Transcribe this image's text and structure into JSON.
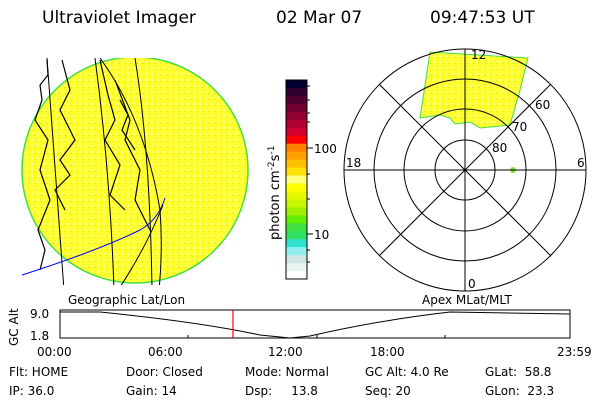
{
  "header": {
    "instrument": "Ultraviolet Imager",
    "date": "02 Mar 07",
    "time": "09:47:53 UT"
  },
  "colorbar": {
    "label": "photon cm",
    "label_exp1": "-2",
    "label_mid": "s",
    "label_exp2": "-1",
    "ticks": [
      "100",
      "10"
    ],
    "colors": [
      "#000030",
      "#300030",
      "#500030",
      "#700030",
      "#900030",
      "#b00030",
      "#d00030",
      "#ff0000",
      "#ff8000",
      "#ffa000",
      "#ffc000",
      "#ffe000",
      "#ffff80",
      "#ffff00",
      "#e8f800",
      "#c8f800",
      "#a0f000",
      "#60f000",
      "#40e040",
      "#30e060",
      "#30e0d0",
      "#90f0f0",
      "#d0e4e4",
      "#e8f4ee",
      "#ffffff"
    ]
  },
  "polar": {
    "mlt_labels": {
      "top": "12",
      "bottom": "0",
      "left": "18",
      "right": "6"
    },
    "lat_labels": [
      "80",
      "70",
      "60"
    ]
  },
  "timeline": {
    "left_label": "Geographic Lat/Lon",
    "right_label": "Apex MLat/MLT",
    "ylabel": "GC Alt",
    "yticks": [
      "9.0",
      "1.8"
    ],
    "xticks": [
      "00:00",
      "06:00",
      "12:00",
      "18:00",
      "23:59"
    ],
    "current_marker_color": "#ff0000"
  },
  "status": {
    "filter": "Flt: HOME",
    "door": "Door: Closed",
    "mode": "Mode: Normal",
    "gc_alt": "GC Alt: 4.0 Re",
    "glat": "GLat:  58.8",
    "ip": "IP: 36.0",
    "gain": "Gain: 14",
    "dsp": "Dsp:     13.8",
    "seq": "Seq: 20",
    "glon": "GLon:  23.3"
  },
  "colors": {
    "image_fill": "#ffff40",
    "image_edge": "#40e040",
    "orbit_track": "#0000ff"
  }
}
